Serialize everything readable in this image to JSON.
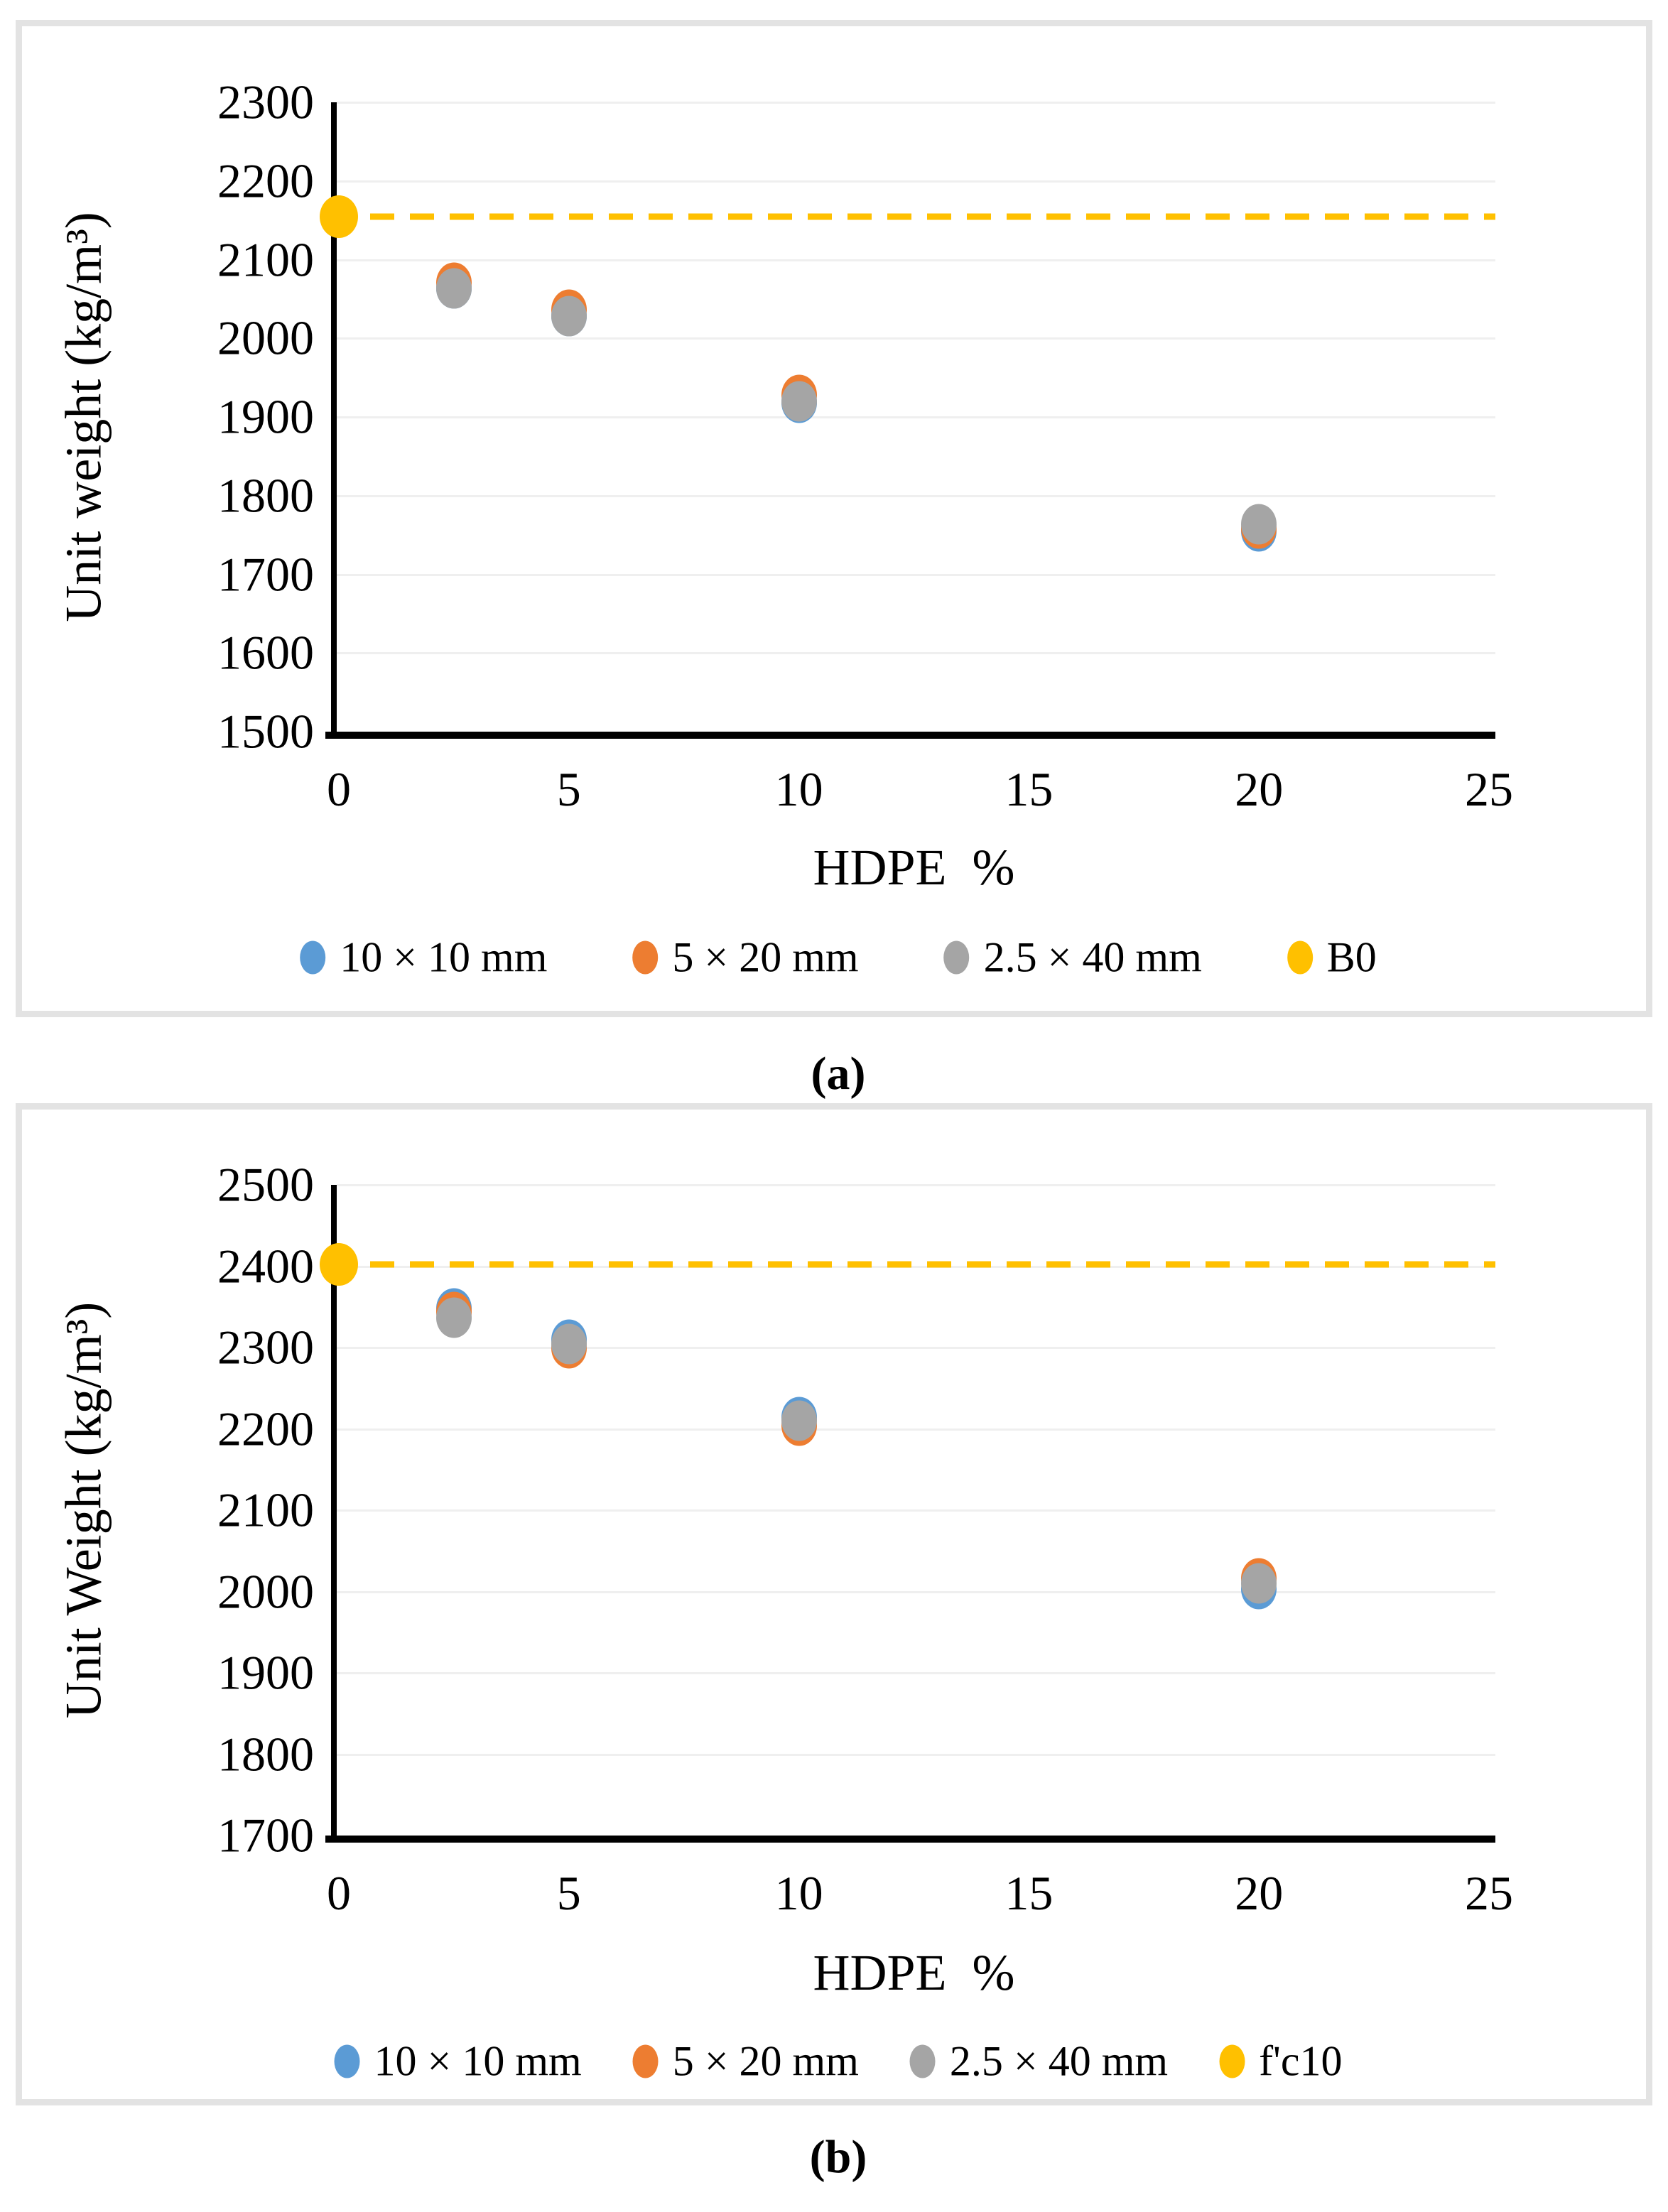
{
  "chart_data": {
    "type": "scatter",
    "charts": [
      {
        "id": "a",
        "caption": "(a)",
        "x_axis": {
          "title": "HDPE  %",
          "min": 0,
          "max": 25,
          "step": 5,
          "tick_labels": [
            "0",
            "5",
            "10",
            "15",
            "20",
            "25"
          ]
        },
        "y_axis": {
          "title": "Unit weight (kg/m³)",
          "min": 1500,
          "max": 2300,
          "step": 100,
          "tick_labels": [
            "1500",
            "1600",
            "1700",
            "1800",
            "1900",
            "2000",
            "2100",
            "2200",
            "2300"
          ]
        },
        "grid": true,
        "legend_position": "bottom",
        "reference": {
          "label": "B0",
          "x": 0,
          "value": 2155,
          "color": "#FFC000",
          "line_style": "dashed"
        },
        "series": [
          {
            "name": "10 × 10 mm",
            "color": "#5B9BD5",
            "x": [
              2.5,
              5,
              10,
              20
            ],
            "y": [
              2063,
              2028,
              1918,
              1755
            ]
          },
          {
            "name": "5 × 20 mm",
            "color": "#ED7D31",
            "x": [
              2.5,
              5,
              10,
              20
            ],
            "y": [
              2071,
              2036,
              1928,
              1758
            ]
          },
          {
            "name": "2.5 × 40 mm",
            "color": "#A5A5A5",
            "x": [
              2.5,
              5,
              10,
              20
            ],
            "y": [
              2063,
              2028,
              1920,
              1764
            ]
          }
        ]
      },
      {
        "id": "b",
        "caption": "(b)",
        "x_axis": {
          "title": "HDPE  %",
          "min": 0,
          "max": 25,
          "step": 5,
          "tick_labels": [
            "0",
            "5",
            "10",
            "15",
            "20",
            "25"
          ]
        },
        "y_axis": {
          "title": "Unit Weight (kg/m³)",
          "min": 1700,
          "max": 2500,
          "step": 100,
          "tick_labels": [
            "1700",
            "1800",
            "1900",
            "2000",
            "2100",
            "2200",
            "2300",
            "2400",
            "2500"
          ]
        },
        "grid": true,
        "legend_position": "bottom",
        "reference": {
          "label": "f'c10",
          "x": 0,
          "value": 2402,
          "color": "#FFC000",
          "line_style": "dashed"
        },
        "series": [
          {
            "name": "10 × 10 mm",
            "color": "#5B9BD5",
            "x": [
              2.5,
              5,
              10,
              20
            ],
            "y": [
              2348,
              2310,
              2214,
              2003
            ]
          },
          {
            "name": "5 × 20 mm",
            "color": "#ED7D31",
            "x": [
              2.5,
              5,
              10,
              20
            ],
            "y": [
              2344,
              2299,
              2204,
              2016
            ]
          },
          {
            "name": "2.5 × 40 mm",
            "color": "#A5A5A5",
            "x": [
              2.5,
              5,
              10,
              20
            ],
            "y": [
              2337,
              2304,
              2210,
              2010
            ]
          }
        ]
      }
    ],
    "colors": {
      "blue": "#5B9BD5",
      "orange": "#ED7D31",
      "gray": "#A5A5A5",
      "yellow": "#FFC000",
      "axis": "#000000",
      "gridline": "#efefef",
      "panel_border": "#e3e3e3"
    }
  }
}
